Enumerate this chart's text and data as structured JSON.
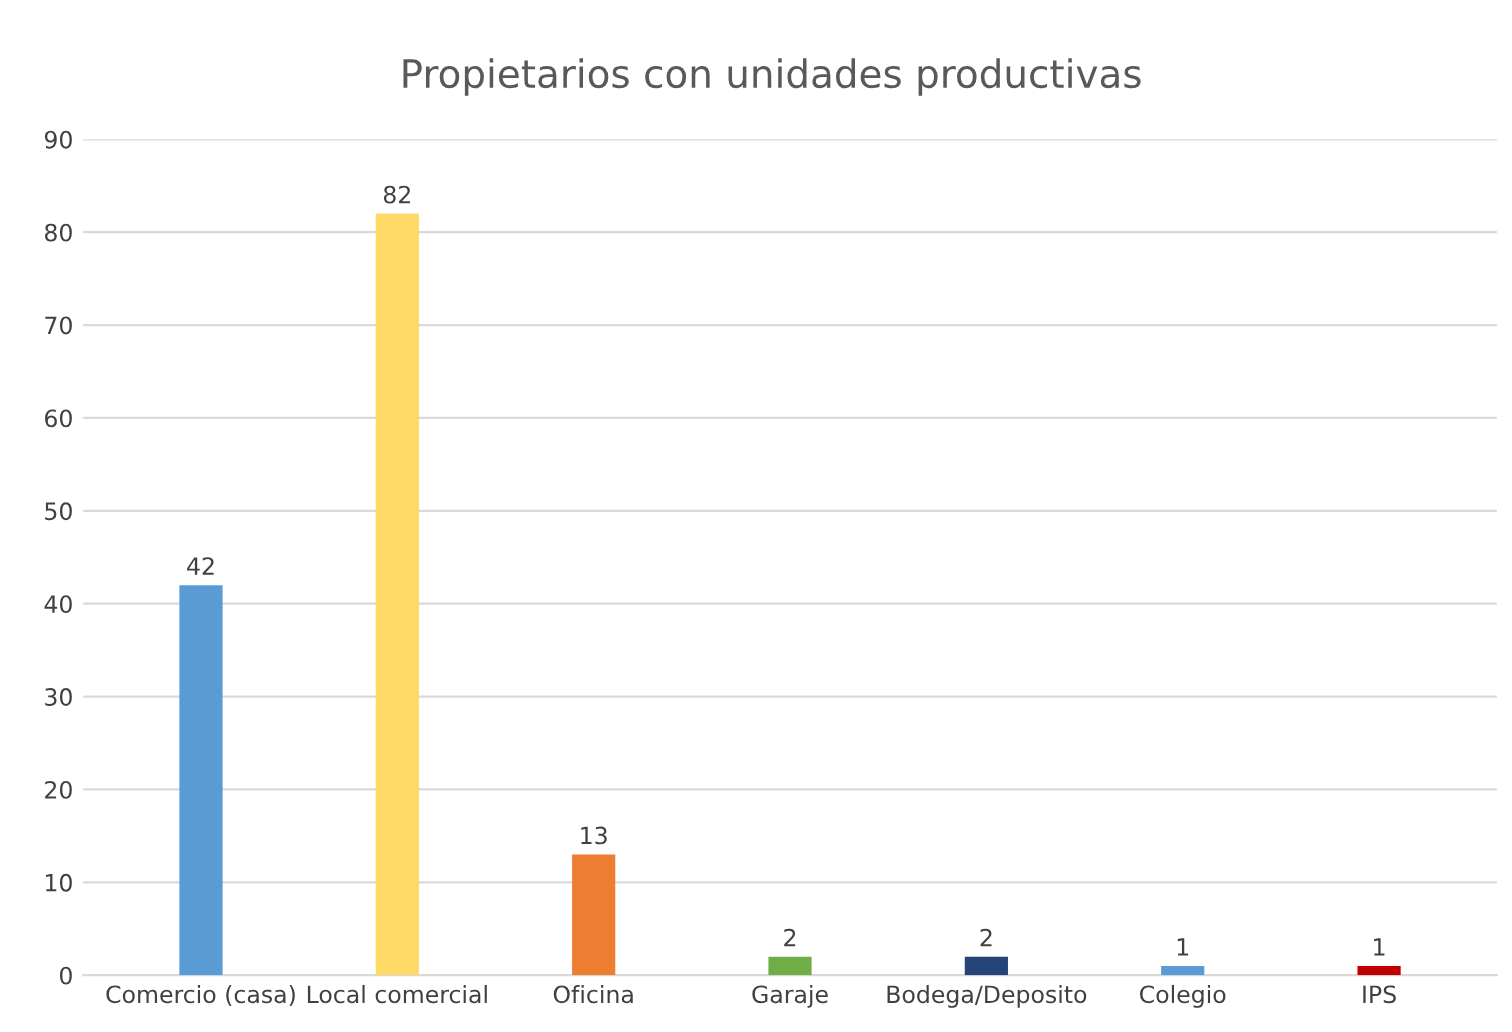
{
  "chart_data": {
    "type": "bar",
    "title": "Propietarios con unidades productivas",
    "categories": [
      "Comercio (casa)",
      "Local comercial",
      "Oficina",
      "Garaje",
      "Bodega/Deposito",
      "Colegio",
      "IPS"
    ],
    "values": [
      42,
      82,
      13,
      2,
      2,
      1,
      1
    ],
    "colors": [
      "#5b9bd5",
      "#ffd966",
      "#ed7d31",
      "#70ad47",
      "#264478",
      "#5b9bd5",
      "#c00000"
    ],
    "ylim": [
      0,
      90
    ],
    "yticks": [
      0,
      10,
      20,
      30,
      40,
      50,
      60,
      70,
      80,
      90
    ],
    "grid": "y",
    "data_labels": true
  }
}
